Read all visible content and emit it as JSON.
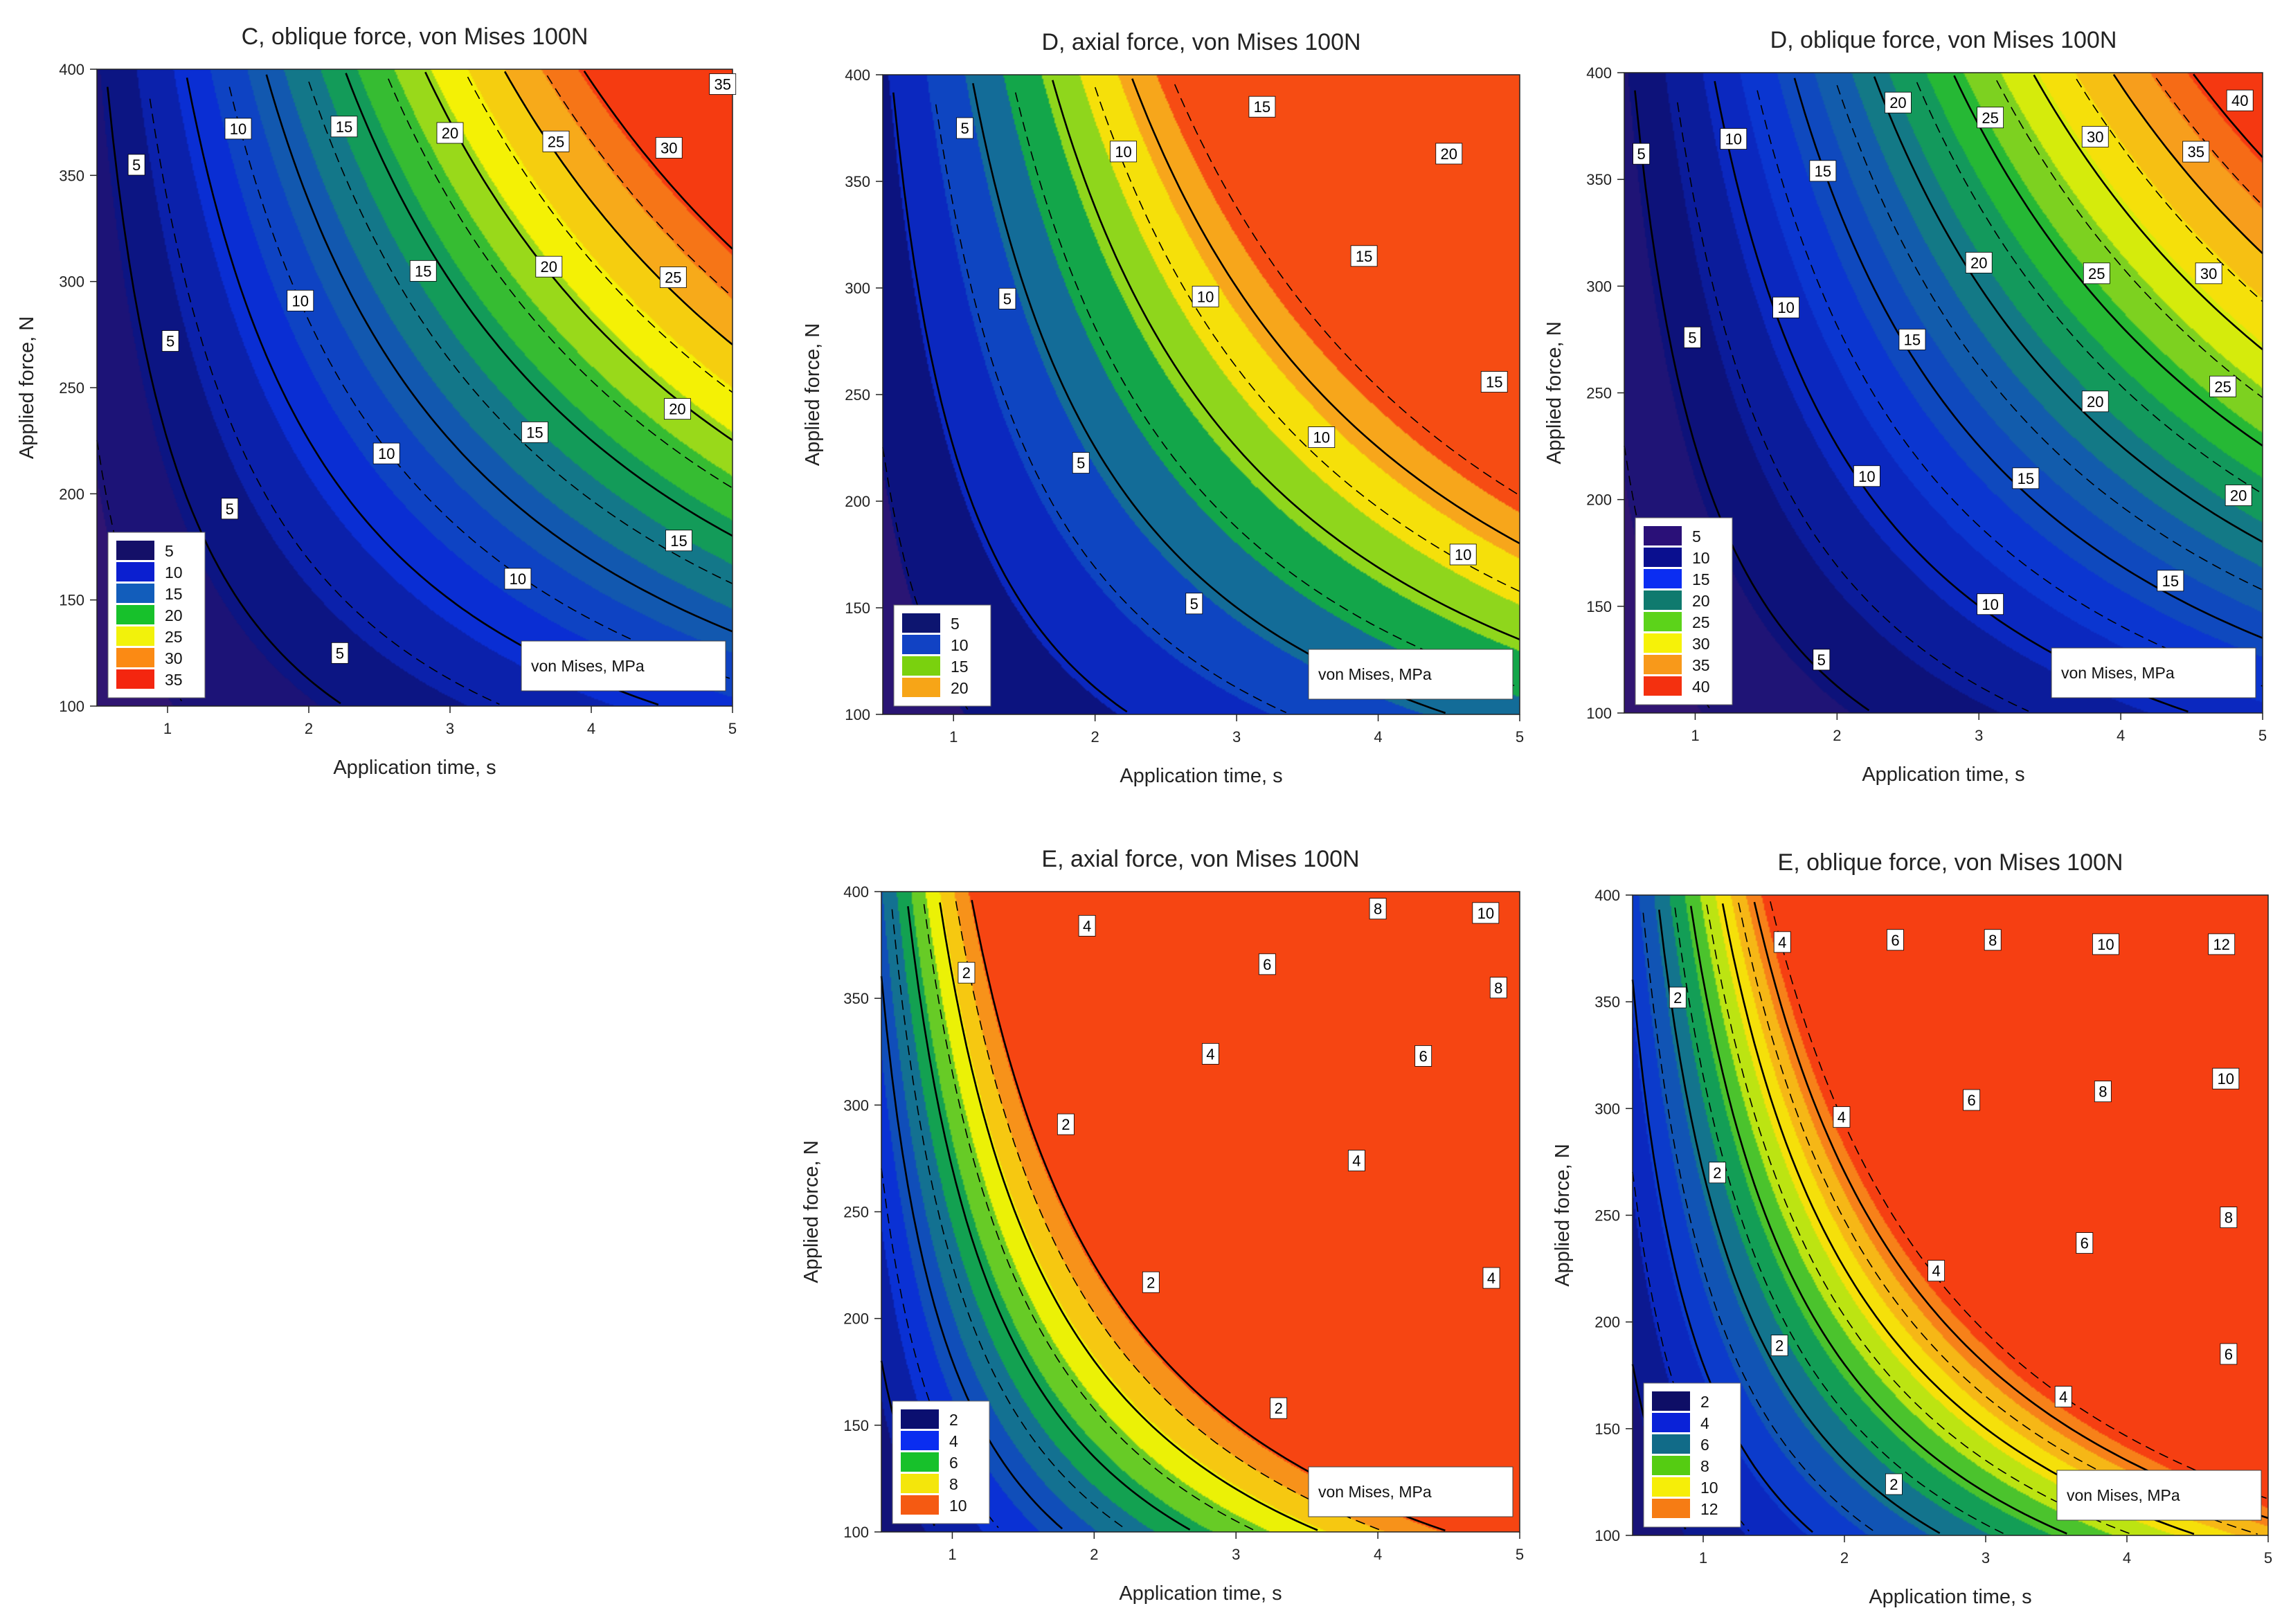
{
  "figure": {
    "value_legend_title": "von Mises, MPa"
  },
  "chart_data": [
    {
      "id": "C-oblique",
      "type": "contour",
      "title": "C, oblique force, von Mises 100N",
      "xlabel": "Application time, s",
      "ylabel": "Applied force, N",
      "xlim": [
        0.5,
        5
      ],
      "ylim": [
        100,
        400
      ],
      "xticks": [
        1,
        2,
        3,
        4,
        5
      ],
      "yticks": [
        100,
        150,
        200,
        250,
        300,
        350,
        400
      ],
      "color_ramp": [
        "#3a1670",
        "#0c127a",
        "#0a2fd6",
        "#1360a8",
        "#13b23a",
        "#f4f404",
        "#f7a21c",
        "#f51e0e"
      ],
      "zmin": 0,
      "zmax": 37,
      "k": 0.0222,
      "legend": {
        "levels": [
          "5",
          "10",
          "15",
          "20",
          "25",
          "30",
          "35"
        ],
        "colors": [
          "#141068",
          "#0b1fd0",
          "#125dbb",
          "#17c12b",
          "#f2f20b",
          "#fb8a14",
          "#f4260f"
        ]
      },
      "contour_labels": [
        {
          "text": "5",
          "t": 0.78,
          "f": 355
        },
        {
          "text": "5",
          "t": 1.02,
          "f": 272
        },
        {
          "text": "5",
          "t": 1.44,
          "f": 193
        },
        {
          "text": "5",
          "t": 2.22,
          "f": 125
        },
        {
          "text": "10",
          "t": 1.5,
          "f": 372
        },
        {
          "text": "10",
          "t": 1.94,
          "f": 291
        },
        {
          "text": "10",
          "t": 2.55,
          "f": 219
        },
        {
          "text": "10",
          "t": 3.48,
          "f": 160
        },
        {
          "text": "15",
          "t": 2.25,
          "f": 373
        },
        {
          "text": "15",
          "t": 2.81,
          "f": 305
        },
        {
          "text": "15",
          "t": 3.6,
          "f": 229
        },
        {
          "text": "15",
          "t": 4.62,
          "f": 178
        },
        {
          "text": "20",
          "t": 3.0,
          "f": 370
        },
        {
          "text": "20",
          "t": 3.7,
          "f": 307
        },
        {
          "text": "20",
          "t": 4.61,
          "f": 240
        },
        {
          "text": "25",
          "t": 3.75,
          "f": 366
        },
        {
          "text": "25",
          "t": 4.58,
          "f": 302
        },
        {
          "text": "30",
          "t": 4.55,
          "f": 363
        },
        {
          "text": "35",
          "t": 4.93,
          "f": 393
        }
      ]
    },
    {
      "id": "D-axial",
      "type": "contour",
      "title": "D, axial force, von Mises 100N",
      "xlabel": "Application time, s",
      "ylabel": "Applied force, N",
      "xlim": [
        0.5,
        5
      ],
      "ylim": [
        100,
        400
      ],
      "xticks": [
        1,
        2,
        3,
        4,
        5
      ],
      "yticks": [
        100,
        150,
        200,
        250,
        300,
        350,
        400
      ],
      "color_ramp": [
        "#3a1670",
        "#0c127a",
        "#0a2fd6",
        "#1360a8",
        "#13b23a",
        "#f4f404",
        "#f7a21c",
        "#f51e0e"
      ],
      "zmin": 0,
      "zmax": 24,
      "k": 0.0222,
      "legend": {
        "levels": [
          "5",
          "10",
          "15",
          "20"
        ],
        "colors": [
          "#0d1570",
          "#1142c4",
          "#7ad10e",
          "#f7a517"
        ]
      },
      "contour_labels": [
        {
          "text": "5",
          "t": 1.08,
          "f": 375
        },
        {
          "text": "5",
          "t": 1.38,
          "f": 295
        },
        {
          "text": "5",
          "t": 1.9,
          "f": 218
        },
        {
          "text": "5",
          "t": 2.7,
          "f": 152
        },
        {
          "text": "10",
          "t": 2.2,
          "f": 364
        },
        {
          "text": "10",
          "t": 2.78,
          "f": 296
        },
        {
          "text": "10",
          "t": 3.6,
          "f": 230
        },
        {
          "text": "10",
          "t": 4.6,
          "f": 175
        },
        {
          "text": "15",
          "t": 3.18,
          "f": 385
        },
        {
          "text": "15",
          "t": 3.9,
          "f": 315
        },
        {
          "text": "15",
          "t": 4.82,
          "f": 256
        },
        {
          "text": "20",
          "t": 4.5,
          "f": 363
        }
      ]
    },
    {
      "id": "D-oblique",
      "type": "contour",
      "title": "D, oblique force, von Mises 100N",
      "xlabel": "Application time, s",
      "ylabel": "Applied force, N",
      "xlim": [
        0.5,
        5
      ],
      "ylim": [
        100,
        400
      ],
      "xticks": [
        1,
        2,
        3,
        4,
        5
      ],
      "yticks": [
        100,
        150,
        200,
        250,
        300,
        350,
        400
      ],
      "color_ramp": [
        "#3a1670",
        "#0c127a",
        "#0a2fd6",
        "#1360a8",
        "#13b23a",
        "#f4f404",
        "#f7a21c",
        "#f51e0e"
      ],
      "zmin": 0,
      "zmax": 42,
      "k": 0.0222,
      "legend": {
        "levels": [
          "5",
          "10",
          "15",
          "20",
          "25",
          "30",
          "35",
          "40"
        ],
        "colors": [
          "#2a1078",
          "#0a0f8f",
          "#0b2df2",
          "#0f7a6e",
          "#5cd31a",
          "#f6f208",
          "#f8991a",
          "#f4300f"
        ]
      },
      "contour_labels": [
        {
          "text": "5",
          "t": 0.62,
          "f": 362
        },
        {
          "text": "5",
          "t": 0.98,
          "f": 276
        },
        {
          "text": "5",
          "t": 1.89,
          "f": 125
        },
        {
          "text": "10",
          "t": 1.27,
          "f": 369
        },
        {
          "text": "10",
          "t": 1.64,
          "f": 290
        },
        {
          "text": "10",
          "t": 2.21,
          "f": 211
        },
        {
          "text": "10",
          "t": 3.08,
          "f": 151
        },
        {
          "text": "15",
          "t": 1.9,
          "f": 354
        },
        {
          "text": "15",
          "t": 2.53,
          "f": 275
        },
        {
          "text": "15",
          "t": 3.33,
          "f": 210
        },
        {
          "text": "15",
          "t": 4.35,
          "f": 162
        },
        {
          "text": "20",
          "t": 2.43,
          "f": 386
        },
        {
          "text": "20",
          "t": 3.0,
          "f": 311
        },
        {
          "text": "20",
          "t": 3.82,
          "f": 246
        },
        {
          "text": "20",
          "t": 4.83,
          "f": 202
        },
        {
          "text": "25",
          "t": 3.08,
          "f": 379
        },
        {
          "text": "25",
          "t": 3.83,
          "f": 306
        },
        {
          "text": "25",
          "t": 4.72,
          "f": 253
        },
        {
          "text": "30",
          "t": 3.82,
          "f": 370
        },
        {
          "text": "30",
          "t": 4.62,
          "f": 306
        },
        {
          "text": "35",
          "t": 4.53,
          "f": 363
        },
        {
          "text": "40",
          "t": 4.84,
          "f": 387
        }
      ]
    },
    {
      "id": "E-axial",
      "type": "contour",
      "title": "E, axial force, von Mises 100N",
      "xlabel": "Application time, s",
      "ylabel": "Applied force, N",
      "xlim": [
        0.5,
        5
      ],
      "ylim": [
        100,
        400
      ],
      "xticks": [
        1,
        2,
        3,
        4,
        5
      ],
      "yticks": [
        100,
        150,
        200,
        250,
        300,
        350,
        400
      ],
      "color_ramp": [
        "#3a1670",
        "#0c127a",
        "#0a2fd6",
        "#1360a8",
        "#13b23a",
        "#f4f404",
        "#f7a21c",
        "#f51e0e"
      ],
      "zmin": 0,
      "zmax": 10.8,
      "k": 0.0222,
      "legend": {
        "levels": [
          "2",
          "4",
          "6",
          "8",
          "10"
        ],
        "colors": [
          "#0b0f70",
          "#0a2df0",
          "#17c12b",
          "#f4e60b",
          "#f55a12"
        ]
      },
      "contour_labels": [
        {
          "text": "2",
          "t": 1.1,
          "f": 362
        },
        {
          "text": "2",
          "t": 1.8,
          "f": 291
        },
        {
          "text": "2",
          "t": 2.4,
          "f": 217
        },
        {
          "text": "2",
          "t": 3.3,
          "f": 158
        },
        {
          "text": "4",
          "t": 1.95,
          "f": 384
        },
        {
          "text": "4",
          "t": 2.82,
          "f": 324
        },
        {
          "text": "4",
          "t": 3.85,
          "f": 274
        },
        {
          "text": "4",
          "t": 4.8,
          "f": 219
        },
        {
          "text": "6",
          "t": 3.22,
          "f": 366
        },
        {
          "text": "6",
          "t": 4.32,
          "f": 323
        },
        {
          "text": "8",
          "t": 4.0,
          "f": 392
        },
        {
          "text": "8",
          "t": 4.85,
          "f": 355
        },
        {
          "text": "10",
          "t": 4.76,
          "f": 390
        }
      ]
    },
    {
      "id": "E-oblique",
      "type": "contour",
      "title": "E, oblique force, von Mises 100N",
      "xlabel": "Application time, s",
      "ylabel": "Applied force, N",
      "xlim": [
        0.5,
        5
      ],
      "ylim": [
        100,
        400
      ],
      "xticks": [
        1,
        2,
        3,
        4,
        5
      ],
      "yticks": [
        100,
        150,
        200,
        250,
        300,
        350,
        400
      ],
      "color_ramp": [
        "#3a1670",
        "#0c127a",
        "#0a2fd6",
        "#1360a8",
        "#13b23a",
        "#f4f404",
        "#f7a21c",
        "#f51e0e"
      ],
      "zmin": 0,
      "zmax": 13.5,
      "k": 0.0222,
      "legend": {
        "levels": [
          "2",
          "4",
          "6",
          "8",
          "10",
          "12"
        ],
        "colors": [
          "#0e0e66",
          "#0a22d8",
          "#116b88",
          "#55cc12",
          "#f6ee08",
          "#f67c14"
        ]
      },
      "contour_labels": [
        {
          "text": "2",
          "t": 0.82,
          "f": 352
        },
        {
          "text": "2",
          "t": 1.1,
          "f": 270
        },
        {
          "text": "2",
          "t": 1.54,
          "f": 189
        },
        {
          "text": "2",
          "t": 2.35,
          "f": 124
        },
        {
          "text": "4",
          "t": 1.56,
          "f": 378
        },
        {
          "text": "4",
          "t": 1.98,
          "f": 296
        },
        {
          "text": "4",
          "t": 2.65,
          "f": 224
        },
        {
          "text": "4",
          "t": 3.55,
          "f": 165
        },
        {
          "text": "6",
          "t": 2.36,
          "f": 379
        },
        {
          "text": "6",
          "t": 2.9,
          "f": 304
        },
        {
          "text": "6",
          "t": 3.7,
          "f": 237
        },
        {
          "text": "6",
          "t": 4.72,
          "f": 185
        },
        {
          "text": "8",
          "t": 3.05,
          "f": 379
        },
        {
          "text": "8",
          "t": 3.83,
          "f": 308
        },
        {
          "text": "8",
          "t": 4.72,
          "f": 249
        },
        {
          "text": "10",
          "t": 3.85,
          "f": 377
        },
        {
          "text": "10",
          "t": 4.7,
          "f": 314
        },
        {
          "text": "12",
          "t": 4.67,
          "f": 377
        }
      ]
    }
  ]
}
